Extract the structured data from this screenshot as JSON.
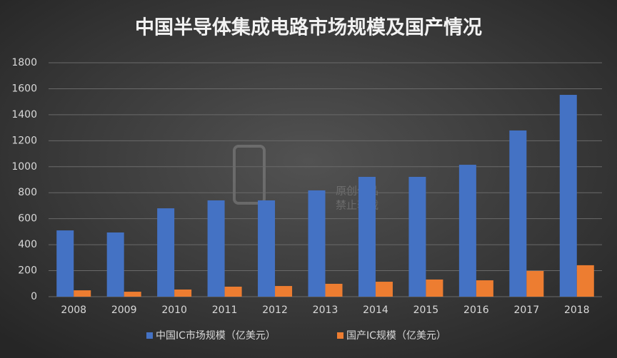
{
  "chart_data": {
    "type": "bar",
    "title": "中国半导体集成电路市场规模及国产情况",
    "categories": [
      "2008",
      "2009",
      "2010",
      "2011",
      "2012",
      "2013",
      "2014",
      "2015",
      "2016",
      "2017",
      "2018"
    ],
    "series": [
      {
        "name": "中国IC市场规模（亿美元）",
        "color": "#4472c4",
        "values": [
          510,
          494,
          680,
          741,
          741,
          818,
          922,
          922,
          1015,
          1279,
          1553
        ]
      },
      {
        "name": "国产IC规模（亿美元）",
        "color": "#ed7d31",
        "values": [
          49,
          38,
          55,
          77,
          82,
          99,
          115,
          132,
          126,
          198,
          242
        ]
      }
    ],
    "ylim": [
      0,
      1800
    ],
    "yticks": [
      0,
      200,
      400,
      600,
      800,
      1000,
      1200,
      1400,
      1600,
      1800
    ],
    "grid": true,
    "legend": "bottom"
  },
  "watermark": [
    "原创作品",
    "禁止转载"
  ]
}
